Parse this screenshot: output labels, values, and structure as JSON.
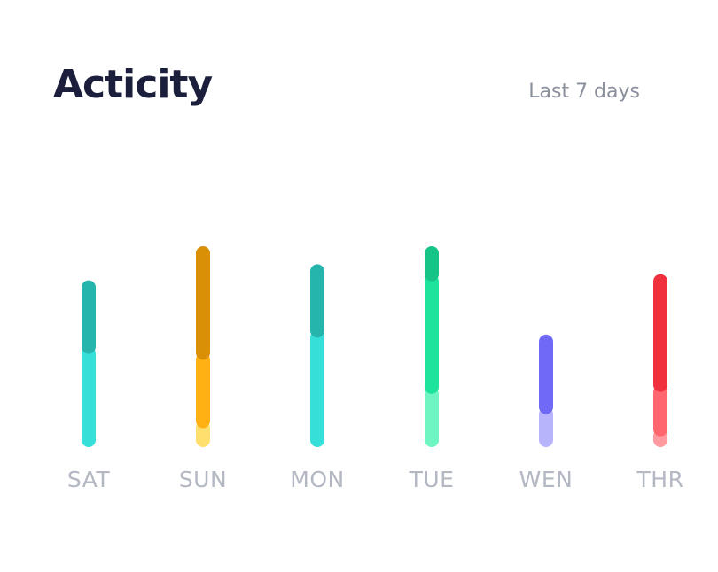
{
  "header": {
    "title": "Acticity",
    "range_label": "Last 7 days"
  },
  "chart_data": {
    "type": "bar",
    "title": "Acticity",
    "stacked": true,
    "categories": [
      "SAT",
      "SUN",
      "MON",
      "TUE",
      "WEN",
      "THR"
    ],
    "ylim": [
      0,
      100
    ],
    "bars": [
      {
        "day": "SAT",
        "segments": [
          {
            "value": 50,
            "color": "#36e0d9"
          },
          {
            "value": 33,
            "color": "#25b5ad"
          }
        ]
      },
      {
        "day": "SUN",
        "segments": [
          {
            "value": 13,
            "color": "#ffdf6e"
          },
          {
            "value": 34,
            "color": "#ffb012"
          },
          {
            "value": 53,
            "color": "#d98f06"
          }
        ]
      },
      {
        "day": "MON",
        "segments": [
          {
            "value": 58,
            "color": "#36e0d9"
          },
          {
            "value": 33,
            "color": "#25b5ad"
          }
        ]
      },
      {
        "day": "TUE",
        "segments": [
          {
            "value": 30,
            "color": "#6ef5c2"
          },
          {
            "value": 56,
            "color": "#1de39d"
          },
          {
            "value": 14,
            "color": "#17c487"
          }
        ]
      },
      {
        "day": "WEN",
        "segments": [
          {
            "value": 20,
            "color": "#b7b4fb"
          },
          {
            "value": 36,
            "color": "#7068f6"
          }
        ]
      },
      {
        "day": "THR",
        "segments": [
          {
            "value": 9,
            "color": "#ff9aa0"
          },
          {
            "value": 22,
            "color": "#ff666e"
          },
          {
            "value": 55,
            "color": "#f0303d"
          }
        ]
      }
    ]
  }
}
